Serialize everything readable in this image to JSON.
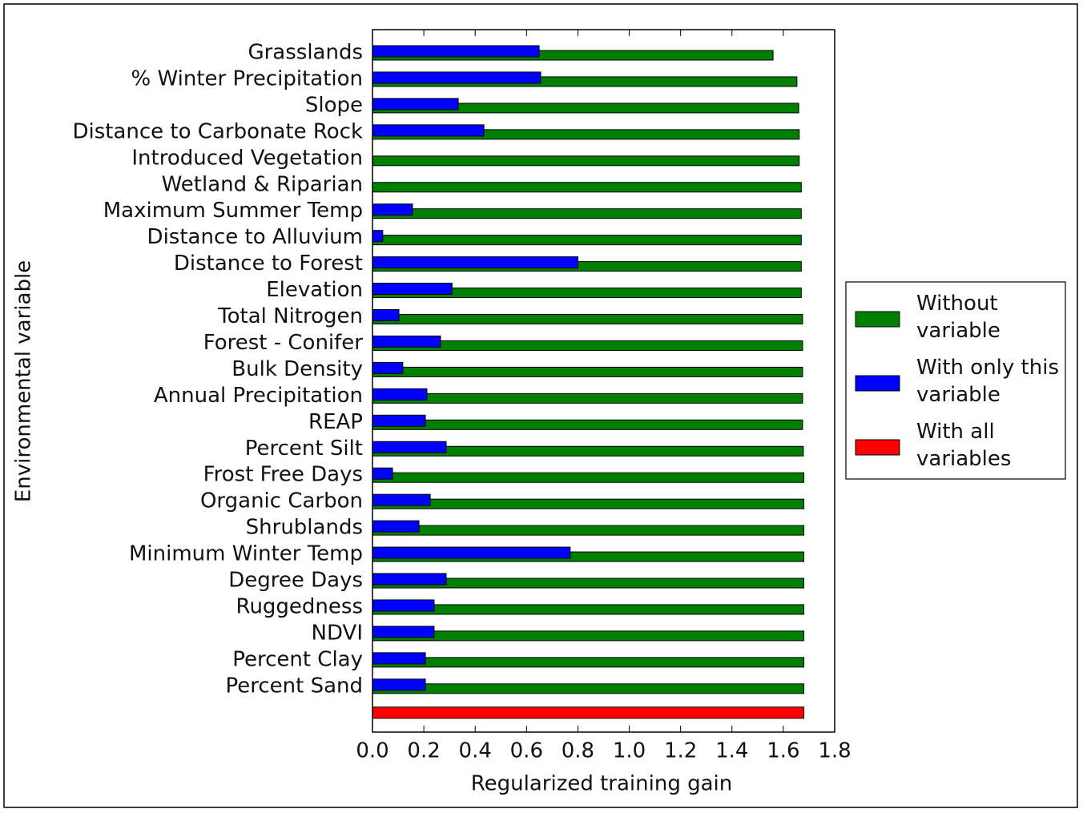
{
  "chart_data": {
    "type": "barh",
    "xlabel": "Regularized training gain",
    "ylabel": "Environmental variable",
    "categories": [
      "Grasslands",
      "% Winter Precipitation",
      "Slope",
      "Distance to Carbonate Rock",
      "Introduced Vegetation",
      "Wetland & Riparian",
      "Maximum Summer Temp",
      "Distance to Alluvium",
      "Distance to Forest",
      "Elevation",
      "Total Nitrogen",
      "Forest - Conifer",
      "Bulk Density",
      "Annual Precipitation",
      "REAP",
      "Percent Silt",
      "Frost Free Days",
      "Organic Carbon",
      "Shrublands",
      "Minimum Winter Temp",
      "Degree Days",
      "Ruggedness",
      "NDVI",
      "Percent Clay",
      "Percent Sand",
      null
    ],
    "series": [
      {
        "name": "Without variable",
        "color": "#008000",
        "values": [
          1.56,
          1.653,
          1.66,
          1.662,
          1.662,
          1.67,
          1.67,
          1.67,
          1.67,
          1.67,
          1.675,
          1.675,
          1.675,
          1.675,
          1.675,
          1.678,
          1.68,
          1.68,
          1.68,
          1.68,
          1.68,
          1.68,
          1.68,
          1.68,
          1.68,
          null
        ]
      },
      {
        "name": "With only this variable",
        "color": "#0000ff",
        "values": [
          0.649,
          0.655,
          0.334,
          0.434,
          0,
          0,
          0.156,
          0.04,
          0.8,
          0.31,
          0.103,
          0.265,
          0.118,
          0.212,
          0.206,
          0.287,
          0.078,
          0.225,
          0.181,
          0.77,
          0.287,
          0.24,
          0.24,
          0.206,
          0.206,
          null
        ]
      },
      {
        "name": "With all variables",
        "color": "#ff0000",
        "values": [
          null,
          null,
          null,
          null,
          null,
          null,
          null,
          null,
          null,
          null,
          null,
          null,
          null,
          null,
          null,
          null,
          null,
          null,
          null,
          null,
          null,
          null,
          null,
          null,
          null,
          1.68
        ]
      }
    ],
    "xlim": [
      0,
      1.8
    ],
    "xticks": [
      {
        "value": 0,
        "label": "0.0"
      },
      0.2,
      0.4,
      0.6,
      0.8,
      {
        "value": 1,
        "label": "1.0"
      },
      1.2,
      1.4,
      1.6,
      1.8
    ],
    "legend": "right"
  }
}
